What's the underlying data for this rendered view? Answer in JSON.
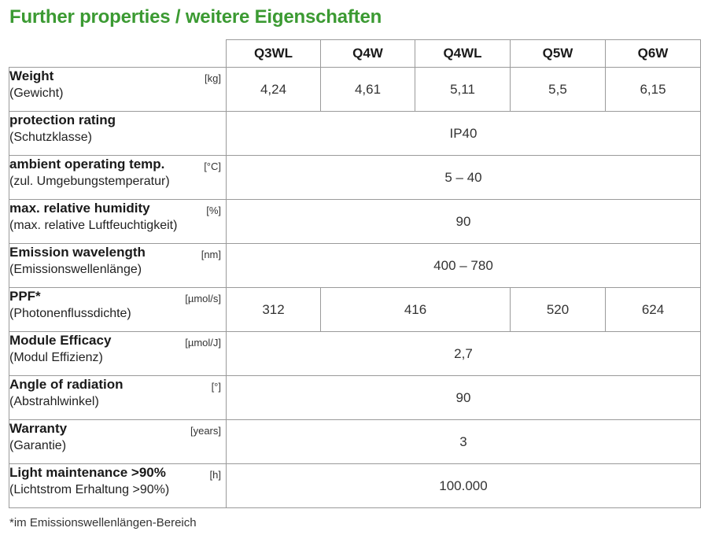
{
  "title": "Further properties / weitere Eigenschaften",
  "columns": [
    "Q3WL",
    "Q4W",
    "Q4WL",
    "Q5W",
    "Q6W"
  ],
  "rows": [
    {
      "name": "Weight",
      "sub": "(Gewicht)",
      "unit": "[kg]",
      "values": [
        "4,24",
        "4,61",
        "5,11",
        "5,5",
        "6,15"
      ]
    },
    {
      "name": "protection rating",
      "sub": "(Schutzklasse)",
      "unit": "",
      "value": "IP40"
    },
    {
      "name": "ambient operating temp.",
      "sub": "(zul. Umgebungstemperatur)",
      "unit": "[°C]",
      "value": "5 – 40"
    },
    {
      "name": "max. relative humidity",
      "sub": "(max. relative Luftfeuchtigkeit)",
      "unit": "[%]",
      "value": "90"
    },
    {
      "name": "Emission wavelength",
      "sub": "(Emissionswellenlänge)",
      "unit": "[nm]",
      "value": "400 – 780"
    },
    {
      "name": "PPF*",
      "sub": "(Photonenflussdichte)",
      "unit": "[µmol/s]",
      "values": [
        "312",
        "416",
        "520",
        "624"
      ]
    },
    {
      "name": "Module Efficacy",
      "sub": "(Modul Effizienz)",
      "unit": "[µmol/J]",
      "value": "2,7"
    },
    {
      "name": "Angle of radiation",
      "sub": "(Abstrahlwinkel)",
      "unit": "[°]",
      "value": "90"
    },
    {
      "name": "Warranty",
      "sub": "(Garantie)",
      "unit": "[years]",
      "value": "3"
    },
    {
      "name": "Light maintenance >90%",
      "sub": "(Lichtstrom Erhaltung >90%)",
      "unit": "[h]",
      "value": "100.000"
    }
  ],
  "footnote": "*im Emissionswellenlängen-Bereich"
}
